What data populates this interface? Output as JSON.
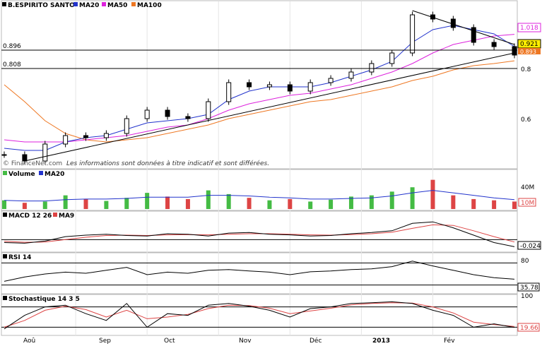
{
  "app": {
    "title": "B.ESPIRITO SANTO"
  },
  "colors": {
    "price": "#000000",
    "ma20": "#2233cc",
    "ma50": "#dd22dd",
    "ma100": "#ee7722",
    "vol_up": "#44bb44",
    "vol_down": "#dd4444",
    "signal": "#dd4444"
  },
  "disclaimer": "Les informations sont données à titre indicatif et sont différées.",
  "watermark": "© FinanceNet.com",
  "x_axis": {
    "labels": [
      "Aoû",
      "Sep",
      "Oct",
      "Nov",
      "Déc",
      "2013",
      "Fév"
    ]
  },
  "price_panel": {
    "legend": [
      "B.ESPIRITO SANTO",
      "MA20",
      "MA50",
      "MA100"
    ],
    "hlines": [
      {
        "label": "0.896",
        "value": 0.896
      },
      {
        "label": "0.808",
        "value": 0.808
      }
    ],
    "y_ticks": [
      "0.8",
      "0.6"
    ],
    "tags": {
      "ma50": "1.018",
      "last": "0.921",
      "ma100": "0.893"
    }
  },
  "volume_panel": {
    "legend": [
      "Volume",
      "MA20"
    ],
    "ticks": [
      "40M",
      "10M"
    ]
  },
  "macd_panel": {
    "legend": [
      "MACD 12 26",
      "MA9"
    ],
    "tag": "-0.024"
  },
  "rsi_panel": {
    "legend": [
      "RSI 14"
    ],
    "tick": "80",
    "tag": "35.78"
  },
  "stoch_panel": {
    "legend": [
      "Stochastique 14 3 5"
    ],
    "tick": "100",
    "tag": "19.66"
  },
  "chart_data": {
    "type": "line",
    "title": "B.ESPIRITO SANTO",
    "x": [
      "Aoû",
      "Aoû",
      "Aoû",
      "Sep",
      "Sep",
      "Sep",
      "Sep",
      "Oct",
      "Oct",
      "Oct",
      "Oct",
      "Nov",
      "Nov",
      "Nov",
      "Nov",
      "Déc",
      "Déc",
      "Déc",
      "Déc",
      "2013",
      "2013",
      "2013",
      "2013",
      "Fév",
      "Fév",
      "Fév"
    ],
    "series": [
      {
        "name": "B.ESPIRITO SANTO",
        "values": [
          0.45,
          0.42,
          0.5,
          0.54,
          0.53,
          0.55,
          0.62,
          0.66,
          0.63,
          0.62,
          0.7,
          0.79,
          0.77,
          0.78,
          0.75,
          0.79,
          0.81,
          0.84,
          0.88,
          0.93,
          1.11,
          1.09,
          1.05,
          0.98,
          0.96,
          0.92
        ]
      },
      {
        "name": "MA20",
        "values": [
          0.48,
          0.47,
          0.47,
          0.51,
          0.53,
          0.54,
          0.57,
          0.6,
          0.61,
          0.62,
          0.64,
          0.71,
          0.75,
          0.77,
          0.77,
          0.77,
          0.79,
          0.82,
          0.85,
          0.89,
          0.98,
          1.04,
          1.06,
          1.04,
          1.02,
          0.96
        ]
      },
      {
        "name": "MA50",
        "values": [
          0.52,
          0.51,
          0.51,
          0.51,
          0.52,
          0.53,
          0.54,
          0.56,
          0.58,
          0.59,
          0.62,
          0.66,
          0.69,
          0.71,
          0.73,
          0.74,
          0.76,
          0.78,
          0.81,
          0.84,
          0.88,
          0.93,
          0.97,
          0.99,
          1.01,
          1.018
        ]
      },
      {
        "name": "MA100",
        "values": [
          0.78,
          0.7,
          0.61,
          0.55,
          0.52,
          0.51,
          0.52,
          0.53,
          0.55,
          0.57,
          0.59,
          0.62,
          0.64,
          0.66,
          0.68,
          0.7,
          0.71,
          0.73,
          0.75,
          0.77,
          0.8,
          0.82,
          0.85,
          0.87,
          0.88,
          0.893
        ]
      }
    ],
    "ylim": [
      0.42,
      1.14
    ],
    "hlines": [
      0.896,
      0.808
    ],
    "volume": [
      14,
      10,
      12,
      22,
      16,
      13,
      18,
      26,
      20,
      16,
      30,
      24,
      18,
      14,
      16,
      12,
      15,
      20,
      22,
      28,
      35,
      47,
      22,
      16,
      14,
      12
    ],
    "volume_ma": [
      14,
      13,
      13,
      15,
      16,
      16,
      17,
      19,
      19,
      19,
      22,
      22,
      21,
      19,
      18,
      16,
      16,
      17,
      18,
      21,
      26,
      30,
      26,
      22,
      18,
      15
    ],
    "macd": [
      -0.01,
      -0.012,
      -0.005,
      0.01,
      0.015,
      0.018,
      0.014,
      0.012,
      0.02,
      0.018,
      0.012,
      0.022,
      0.024,
      0.018,
      0.016,
      0.012,
      0.014,
      0.02,
      0.024,
      0.03,
      0.055,
      0.06,
      0.04,
      0.015,
      -0.01,
      -0.024
    ],
    "macd_signal": [
      -0.006,
      -0.009,
      -0.008,
      0.0,
      0.008,
      0.014,
      0.015,
      0.014,
      0.016,
      0.017,
      0.016,
      0.018,
      0.02,
      0.02,
      0.018,
      0.016,
      0.015,
      0.017,
      0.02,
      0.025,
      0.038,
      0.05,
      0.048,
      0.03,
      0.01,
      -0.008
    ],
    "rsi": [
      30,
      42,
      50,
      55,
      52,
      60,
      68,
      48,
      55,
      52,
      60,
      62,
      58,
      55,
      48,
      56,
      58,
      62,
      64,
      70,
      85,
      72,
      60,
      48,
      40,
      35.78
    ],
    "stoch": [
      15,
      55,
      80,
      85,
      60,
      40,
      90,
      20,
      60,
      55,
      85,
      90,
      82,
      70,
      50,
      75,
      80,
      90,
      92,
      95,
      90,
      70,
      55,
      20,
      30,
      19.66
    ],
    "stoch_signal": [
      20,
      40,
      70,
      82,
      72,
      50,
      70,
      45,
      50,
      58,
      75,
      85,
      84,
      76,
      60,
      68,
      76,
      86,
      90,
      92,
      91,
      80,
      62,
      35,
      28,
      22
    ]
  }
}
